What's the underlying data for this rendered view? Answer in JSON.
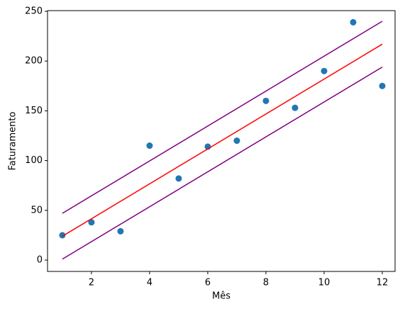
{
  "chart_data": {
    "type": "scatter",
    "xlabel": "Mês",
    "ylabel": "Faturamento",
    "xlim": [
      0.49,
      12.44
    ],
    "ylim": [
      -11.4,
      250.7
    ],
    "xticks": [
      2,
      4,
      6,
      8,
      10,
      12
    ],
    "yticks": [
      0,
      50,
      100,
      150,
      200,
      250
    ],
    "series": [
      {
        "mode": "markers",
        "color": "#1f77b4",
        "x": [
          1,
          2,
          3,
          4,
          5,
          6,
          7,
          8,
          9,
          10,
          11,
          12
        ],
        "values": [
          25,
          38,
          29,
          115,
          82,
          114,
          120,
          160,
          153,
          190,
          239,
          175
        ]
      },
      {
        "mode": "line",
        "color": "red",
        "x": [
          1,
          12
        ],
        "values": [
          24,
          217
        ]
      },
      {
        "mode": "line",
        "color": "purple",
        "x": [
          1,
          12
        ],
        "values": [
          47,
          240
        ]
      },
      {
        "mode": "line",
        "color": "purple",
        "x": [
          1,
          12
        ],
        "values": [
          1,
          194
        ]
      }
    ]
  }
}
